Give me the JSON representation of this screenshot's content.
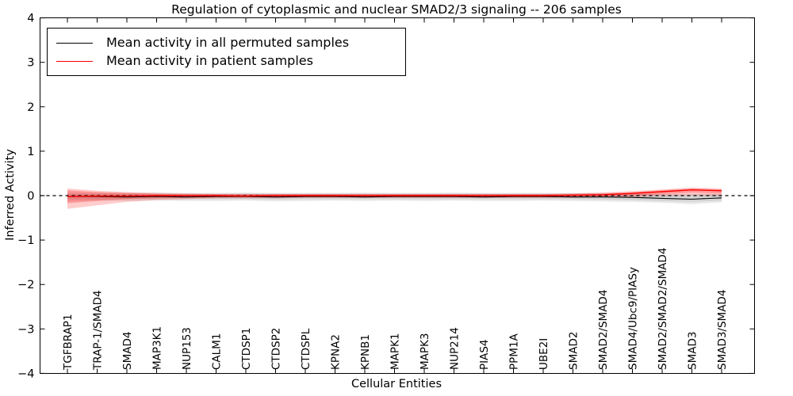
{
  "legend": {
    "items": [
      {
        "label": "Mean activity in all permuted samples",
        "color": "#000000"
      },
      {
        "label": "Mean activity in patient samples",
        "color": "#ff0000"
      }
    ]
  },
  "chart_data": {
    "type": "line",
    "title": "Regulation of cytoplasmic and nuclear SMAD2/3 signaling -- 206 samples",
    "xlabel": "Cellular Entities",
    "ylabel": "Inferred Activity",
    "ylim": [
      -4,
      4
    ],
    "yticks": [
      -4,
      -3,
      -2,
      -1,
      0,
      1,
      2,
      3,
      4
    ],
    "grid": false,
    "legend_position": "upper left",
    "categories": [
      "TGFBRAP1",
      "TRAP-1/SMAD4",
      "SMAD4",
      "MAP3K1",
      "NUP153",
      "CALM1",
      "CTDSP1",
      "CTDSP2",
      "CTDSPL",
      "KPNA2",
      "KPNB1",
      "MAPK1",
      "MAPK3",
      "NUP214",
      "PIAS4",
      "PPM1A",
      "UBE2I",
      "SMAD2",
      "SMAD2/SMAD4",
      "SMAD4/Ubc9/PIASy",
      "SMAD2/SMAD2/SMAD4",
      "SMAD3",
      "SMAD3/SMAD4"
    ],
    "zero_line": {
      "y": 0,
      "style": "dashed",
      "color": "#000000"
    },
    "series": [
      {
        "name": "Mean activity in all permuted samples",
        "color": "#000000",
        "values": [
          -0.02,
          -0.02,
          -0.03,
          -0.02,
          -0.03,
          -0.02,
          -0.02,
          -0.03,
          -0.02,
          -0.02,
          -0.03,
          -0.02,
          -0.02,
          -0.02,
          -0.03,
          -0.02,
          -0.02,
          -0.03,
          -0.03,
          -0.04,
          -0.06,
          -0.08,
          -0.05
        ]
      },
      {
        "name": "Mean activity in patient samples",
        "color": "#ff0000",
        "values": [
          -0.02,
          -0.01,
          -0.01,
          0,
          0,
          0,
          -0.01,
          0,
          0,
          0,
          0,
          0,
          0,
          0,
          0,
          0,
          0,
          0.01,
          0.02,
          0.05,
          0.09,
          0.13,
          0.11
        ]
      }
    ],
    "bands": [
      {
        "name": "permuted-std-outer",
        "color": "#000000",
        "opacity": 0.09,
        "upper": [
          0.07,
          0.06,
          0.06,
          0.07,
          0.06,
          0.06,
          0.07,
          0.06,
          0.06,
          0.06,
          0.07,
          0.06,
          0.06,
          0.07,
          0.06,
          0.06,
          0.06,
          0.06,
          0.06,
          0.05,
          0.04,
          0.03,
          0.05
        ],
        "lower": [
          -0.12,
          -0.11,
          -0.12,
          -0.11,
          -0.12,
          -0.12,
          -0.11,
          -0.13,
          -0.12,
          -0.11,
          -0.12,
          -0.11,
          -0.12,
          -0.11,
          -0.12,
          -0.12,
          -0.11,
          -0.12,
          -0.13,
          -0.14,
          -0.16,
          -0.19,
          -0.15
        ]
      },
      {
        "name": "permuted-std-inner",
        "color": "#000000",
        "opacity": 0.09,
        "upper": [
          0.04,
          0.04,
          0.04,
          0.04,
          0.04,
          0.04,
          0.04,
          0.04,
          0.04,
          0.04,
          0.04,
          0.04,
          0.04,
          0.04,
          0.04,
          0.04,
          0.04,
          0.04,
          0.04,
          0.03,
          0.02,
          0.01,
          0.03
        ],
        "lower": [
          -0.08,
          -0.08,
          -0.08,
          -0.08,
          -0.08,
          -0.08,
          -0.08,
          -0.09,
          -0.08,
          -0.08,
          -0.08,
          -0.08,
          -0.08,
          -0.08,
          -0.08,
          -0.08,
          -0.08,
          -0.08,
          -0.09,
          -0.1,
          -0.12,
          -0.14,
          -0.11
        ]
      },
      {
        "name": "patient-std-outer",
        "color": "#ff0000",
        "opacity": 0.2,
        "upper": [
          0.16,
          0.11,
          0.08,
          0.06,
          0.05,
          0.04,
          0.04,
          0.04,
          0.04,
          0.04,
          0.04,
          0.04,
          0.04,
          0.04,
          0.04,
          0.04,
          0.04,
          0.05,
          0.07,
          0.1,
          0.14,
          0.18,
          0.16
        ],
        "lower": [
          -0.3,
          -0.22,
          -0.14,
          -0.1,
          -0.08,
          -0.06,
          -0.06,
          -0.06,
          -0.05,
          -0.05,
          -0.05,
          -0.05,
          -0.05,
          -0.05,
          -0.05,
          -0.05,
          -0.05,
          -0.05,
          -0.04,
          -0.03,
          -0.01,
          0,
          -0.01
        ]
      },
      {
        "name": "patient-std-inner",
        "color": "#ff0000",
        "opacity": 0.25,
        "upper": [
          0.12,
          0.08,
          0.06,
          0.04,
          0.03,
          0.03,
          0.03,
          0.03,
          0.03,
          0.03,
          0.03,
          0.03,
          0.03,
          0.03,
          0.03,
          0.03,
          0.03,
          0.04,
          0.05,
          0.08,
          0.12,
          0.16,
          0.14
        ],
        "lower": [
          -0.17,
          -0.12,
          -0.08,
          -0.06,
          -0.05,
          -0.04,
          -0.04,
          -0.04,
          -0.04,
          -0.04,
          -0.04,
          -0.04,
          -0.04,
          -0.04,
          -0.04,
          -0.04,
          -0.04,
          -0.03,
          -0.02,
          0,
          0.03,
          0.07,
          0.05
        ]
      }
    ]
  }
}
